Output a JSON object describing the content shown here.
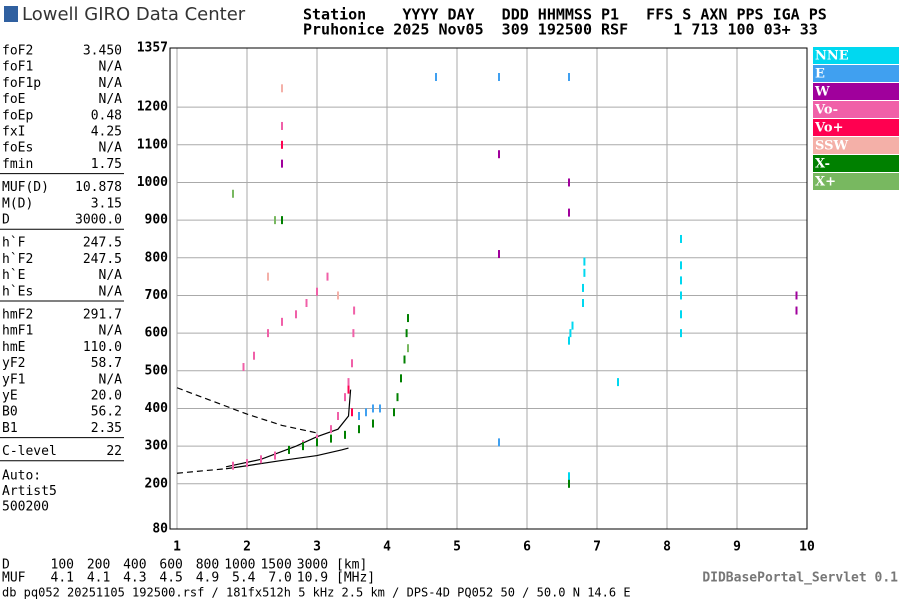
{
  "header": {
    "logo": "Lowell GIRO Data Center",
    "line1": "Station    YYYY DAY   DDD HHMMSS P1   FFS S AXN PPS IGA PS",
    "line2": "Pruhonice 2025 Nov05  309 192500 RSF     1 713 100 03+ 33"
  },
  "params": [
    [
      [
        "foF2",
        "3.450"
      ],
      [
        "foF1",
        "N/A"
      ],
      [
        "foF1p",
        "N/A"
      ],
      [
        "foE",
        "N/A"
      ],
      [
        "foEp",
        "0.48"
      ],
      [
        "fxI",
        "4.25"
      ],
      [
        "foEs",
        "N/A"
      ],
      [
        "fmin",
        "1.75"
      ]
    ],
    [
      [
        "MUF(D)",
        "10.878"
      ],
      [
        "M(D)",
        "3.15"
      ],
      [
        "D",
        "3000.0"
      ]
    ],
    [
      [
        "h`F",
        "247.5"
      ],
      [
        "h`F2",
        "247.5"
      ],
      [
        "h`E",
        "N/A"
      ],
      [
        "h`Es",
        "N/A"
      ]
    ],
    [
      [
        "hmF2",
        "291.7"
      ],
      [
        "hmF1",
        "N/A"
      ],
      [
        "hmE",
        "110.0"
      ],
      [
        "yF2",
        "58.7"
      ],
      [
        "yF1",
        "N/A"
      ],
      [
        "yE",
        "20.0"
      ],
      [
        "B0",
        "56.2"
      ],
      [
        "B1",
        "2.35"
      ]
    ],
    [
      [
        "C-level",
        "22"
      ]
    ]
  ],
  "autoscaling": [
    "Auto:",
    "Artist5",
    "500200"
  ],
  "distance_table": {
    "d_label": "D",
    "d_values": [
      "100",
      "200",
      "400",
      "600",
      "800",
      "1000",
      "1500",
      "3000"
    ],
    "d_unit": "[km]",
    "muf_label": "MUF",
    "muf_values": [
      "4.1",
      "4.1",
      "4.3",
      "4.5",
      "4.9",
      "5.4",
      "7.0",
      "10.9"
    ],
    "muf_unit": "[MHz]"
  },
  "servlet": "DIDBasePortal_Servlet 0.1",
  "footer": "db pq052 20251105 192500.rsf / 181fx512h 5 kHz 2.5 km / DPS-4D PQ052 50 / 50.0 N 14.6 E",
  "chart_data": {
    "type": "scatter",
    "xlim": [
      1,
      10
    ],
    "xticks": [
      1,
      2,
      3,
      4,
      5,
      6,
      7,
      8,
      9,
      10
    ],
    "ylim": [
      80,
      1357
    ],
    "yticks": [
      80,
      200,
      300,
      400,
      500,
      600,
      700,
      800,
      900,
      1000,
      1100,
      1200,
      1357
    ],
    "grid": true,
    "legend": "right",
    "series": [
      {
        "name": "NNE",
        "color": "#00d8f0",
        "x": [
          6.6,
          6.62,
          6.65,
          6.8,
          6.8,
          6.82,
          6.82,
          8.2,
          8.2,
          8.2,
          8.2,
          8.2,
          8.2,
          7.3,
          6.6
        ],
        "y": [
          580,
          600,
          620,
          680,
          720,
          760,
          790,
          600,
          650,
          700,
          740,
          780,
          850,
          470,
          220
        ]
      },
      {
        "name": "E",
        "color": "#40a0f0",
        "x": [
          3.6,
          3.7,
          3.8,
          3.9,
          5.6,
          4.7,
          5.6,
          6.6
        ],
        "y": [
          380,
          390,
          400,
          400,
          310,
          1280,
          1280,
          1280
        ]
      },
      {
        "name": "W",
        "color": "#a0009c",
        "x": [
          6.6,
          6.6,
          9.85,
          9.85,
          5.6,
          5.6,
          2.5
        ],
        "y": [
          1000,
          920,
          700,
          660,
          1075,
          810,
          1050
        ]
      },
      {
        "name": "Vo-",
        "color": "#f060a8",
        "x": [
          1.8,
          2.0,
          2.2,
          2.4,
          2.6,
          2.8,
          3.0,
          3.2,
          3.3,
          3.4,
          3.45,
          3.5,
          3.52,
          3.53,
          1.95,
          2.1,
          2.3,
          2.5,
          2.7,
          2.85,
          3.0,
          3.15,
          2.5
        ],
        "y": [
          248,
          255,
          265,
          275,
          290,
          305,
          320,
          345,
          380,
          430,
          470,
          520,
          600,
          660,
          510,
          540,
          600,
          630,
          650,
          680,
          710,
          750,
          1150
        ]
      },
      {
        "name": "Vo+",
        "color": "#ff0050",
        "x": [
          3.5,
          3.45,
          2.5
        ],
        "y": [
          390,
          450,
          1100
        ]
      },
      {
        "name": "SSW",
        "color": "#f4b0a8",
        "x": [
          2.5,
          3.3,
          2.3
        ],
        "y": [
          1250,
          700,
          750
        ]
      },
      {
        "name": "X-",
        "color": "#008000",
        "x": [
          2.6,
          2.8,
          3.0,
          3.2,
          3.4,
          3.6,
          3.8,
          4.1,
          4.15,
          4.2,
          4.25,
          4.28,
          4.3,
          6.6,
          2.5
        ],
        "y": [
          290,
          300,
          310,
          320,
          330,
          345,
          360,
          390,
          430,
          480,
          530,
          600,
          640,
          200,
          900
        ]
      },
      {
        "name": "X+",
        "color": "#78b860",
        "x": [
          4.3,
          2.4,
          1.8
        ],
        "y": [
          560,
          900,
          970
        ]
      }
    ],
    "model_curves": [
      {
        "dashed": true,
        "x": [
          1.0,
          1.5,
          2.0,
          2.5,
          3.0
        ],
        "y": [
          455,
          420,
          385,
          355,
          335
        ]
      },
      {
        "dashed": false,
        "x": [
          1.7,
          2.2,
          2.7,
          3.0,
          3.3,
          3.45,
          3.48
        ],
        "y": [
          245,
          265,
          300,
          325,
          345,
          380,
          450
        ]
      },
      {
        "dashed": true,
        "x": [
          1.0,
          1.4,
          1.7
        ],
        "y": [
          228,
          235,
          240
        ]
      },
      {
        "dashed": false,
        "x": [
          1.7,
          2.0,
          2.5,
          3.0,
          3.35,
          3.45
        ],
        "y": [
          240,
          248,
          262,
          275,
          290,
          295
        ]
      }
    ]
  }
}
